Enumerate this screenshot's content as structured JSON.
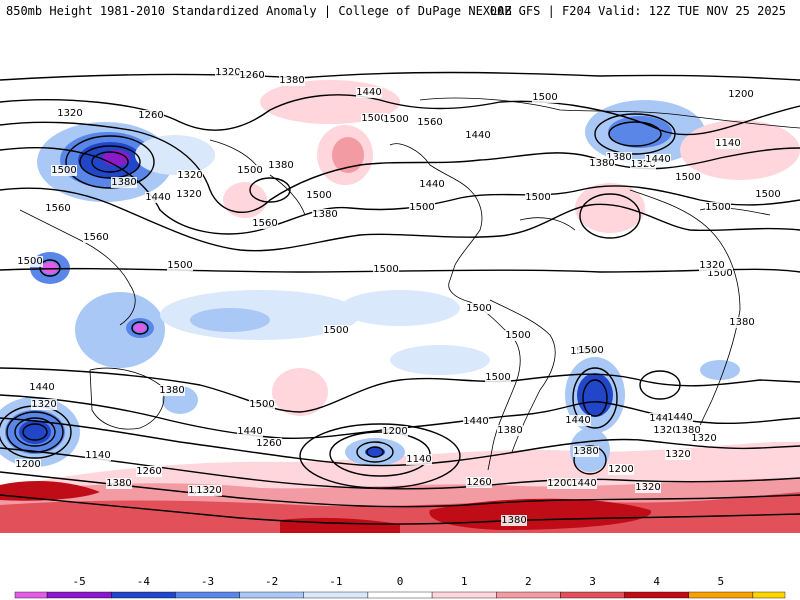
{
  "header": {
    "title": "850mb Height 1981-2010 Standardized Anomaly | College of DuPage NEXLAB",
    "valid": "00Z GFS | F204 Valid: 12Z TUE NOV 25 2025"
  },
  "colorbar": {
    "ticks": [
      "-5",
      "-4",
      "-3",
      "-2",
      "-1",
      "0",
      "1",
      "2",
      "3",
      "4",
      "5"
    ],
    "colors": [
      "#e35ce8",
      "#8b1ac9",
      "#2147c8",
      "#5a86e8",
      "#a9c8f5",
      "#d9e8fb",
      "#ffffff",
      "#ffd6dc",
      "#f39ba2",
      "#e2505a",
      "#c00c16",
      "#f6a100",
      "#ffd400"
    ]
  },
  "map": {
    "contour_labels": [
      "1320",
      "1380",
      "1440",
      "1500",
      "1320",
      "1260",
      "1500",
      "1380",
      "1320",
      "1260",
      "1380",
      "1500",
      "1320",
      "1440",
      "1500",
      "1380",
      "1560",
      "1500",
      "1440",
      "1560",
      "1560",
      "1500",
      "1560",
      "1500",
      "1440",
      "1500",
      "1500",
      "1500",
      "1320",
      "1380",
      "1500",
      "1500",
      "1500",
      "1500",
      "1500",
      "1500",
      "1500",
      "1500",
      "1440",
      "1380",
      "1500",
      "1440",
      "1320",
      "1500",
      "1380",
      "1200",
      "1140",
      "1260",
      "1200",
      "1440",
      "1320",
      "1260",
      "1380",
      "1320",
      "1200",
      "1140",
      "1200",
      "1440",
      "1260",
      "1380",
      "1440",
      "1380",
      "1320",
      "1320",
      "1260",
      "1200",
      "1140",
      "1380",
      "1440",
      "1320",
      "1380",
      "1500",
      "1440",
      "1380",
      "1320",
      "1500",
      "1440",
      "1320"
    ]
  }
}
